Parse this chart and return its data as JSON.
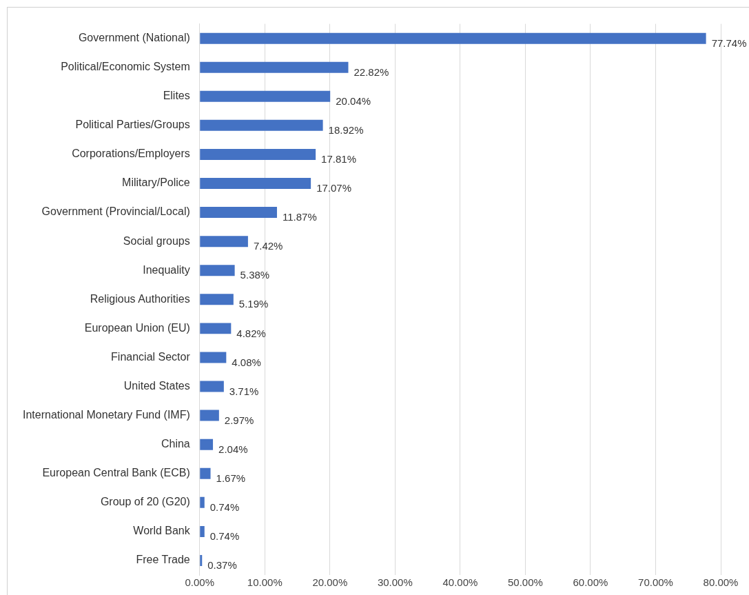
{
  "chart_data": {
    "type": "bar",
    "orientation": "horizontal",
    "categories": [
      "Government (National)",
      "Political/Economic System",
      "Elites",
      "Political Parties/Groups",
      "Corporations/Employers",
      "Military/Police",
      "Government (Provincial/Local)",
      "Social groups",
      "Inequality",
      "Religious Authorities",
      "European Union (EU)",
      "Financial Sector",
      "United States",
      "International Monetary Fund (IMF)",
      "China",
      "European Central Bank (ECB)",
      "Group of 20 (G20)",
      "World Bank",
      "Free Trade"
    ],
    "values": [
      77.74,
      22.82,
      20.04,
      18.92,
      17.81,
      17.07,
      11.87,
      7.42,
      5.38,
      5.19,
      4.82,
      4.08,
      3.71,
      2.97,
      2.04,
      1.67,
      0.74,
      0.74,
      0.37
    ],
    "value_labels": [
      "77.74%",
      "22.82%",
      "20.04%",
      "18.92%",
      "17.81%",
      "17.07%",
      "11.87%",
      "7.42%",
      "5.38%",
      "5.19%",
      "4.82%",
      "4.08%",
      "3.71%",
      "2.97%",
      "2.04%",
      "1.67%",
      "0.74%",
      "0.74%",
      "0.37%"
    ],
    "color": "#4472c4",
    "xlim": [
      0,
      80
    ],
    "xticks": [
      {
        "value": 0,
        "label": "0.00%"
      },
      {
        "value": 10,
        "label": "10.00%"
      },
      {
        "value": 20,
        "label": "20.00%"
      },
      {
        "value": 30,
        "label": "30.00%"
      },
      {
        "value": 40,
        "label": "40.00%"
      },
      {
        "value": 50,
        "label": "50.00%"
      },
      {
        "value": 60,
        "label": "60.00%"
      },
      {
        "value": 70,
        "label": "70.00%"
      },
      {
        "value": 80,
        "label": "80.00%"
      }
    ],
    "grid": "x",
    "legend": false
  }
}
